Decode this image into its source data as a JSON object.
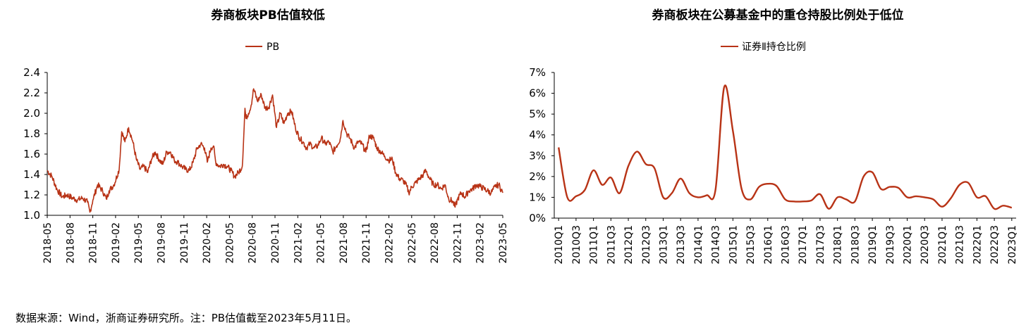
{
  "chart_data": [
    {
      "type": "line",
      "title": "券商板块PB估值较低",
      "legend_position": "top-center",
      "series": [
        {
          "name": "PB",
          "color": "#b83316",
          "points": [
            [
              "2018-05-01",
              1.44
            ],
            [
              "2018-05-20",
              1.38
            ],
            [
              "2018-06-10",
              1.25
            ],
            [
              "2018-07-01",
              1.18
            ],
            [
              "2018-07-20",
              1.2
            ],
            [
              "2018-08-10",
              1.17
            ],
            [
              "2018-09-01",
              1.15
            ],
            [
              "2018-09-20",
              1.17
            ],
            [
              "2018-10-10",
              1.13
            ],
            [
              "2018-10-20",
              1.03
            ],
            [
              "2018-11-01",
              1.15
            ],
            [
              "2018-11-20",
              1.3
            ],
            [
              "2018-12-10",
              1.24
            ],
            [
              "2018-12-25",
              1.16
            ],
            [
              "2019-01-05",
              1.24
            ],
            [
              "2019-01-25",
              1.3
            ],
            [
              "2019-02-15",
              1.45
            ],
            [
              "2019-02-25",
              1.82
            ],
            [
              "2019-03-10",
              1.72
            ],
            [
              "2019-03-25",
              1.86
            ],
            [
              "2019-04-10",
              1.73
            ],
            [
              "2019-04-25",
              1.55
            ],
            [
              "2019-05-10",
              1.45
            ],
            [
              "2019-05-25",
              1.48
            ],
            [
              "2019-06-10",
              1.42
            ],
            [
              "2019-06-25",
              1.55
            ],
            [
              "2019-07-10",
              1.62
            ],
            [
              "2019-07-25",
              1.55
            ],
            [
              "2019-08-10",
              1.5
            ],
            [
              "2019-08-25",
              1.62
            ],
            [
              "2019-09-10",
              1.62
            ],
            [
              "2019-09-25",
              1.54
            ],
            [
              "2019-10-10",
              1.52
            ],
            [
              "2019-10-25",
              1.48
            ],
            [
              "2019-11-10",
              1.45
            ],
            [
              "2019-11-25",
              1.44
            ],
            [
              "2019-12-10",
              1.52
            ],
            [
              "2019-12-25",
              1.65
            ],
            [
              "2020-01-10",
              1.7
            ],
            [
              "2020-01-25",
              1.66
            ],
            [
              "2020-02-05",
              1.52
            ],
            [
              "2020-02-20",
              1.66
            ],
            [
              "2020-03-01",
              1.68
            ],
            [
              "2020-03-10",
              1.52
            ],
            [
              "2020-03-25",
              1.48
            ],
            [
              "2020-04-10",
              1.5
            ],
            [
              "2020-04-25",
              1.48
            ],
            [
              "2020-05-10",
              1.44
            ],
            [
              "2020-05-25",
              1.38
            ],
            [
              "2020-06-10",
              1.42
            ],
            [
              "2020-06-25",
              1.48
            ],
            [
              "2020-07-01",
              1.78
            ],
            [
              "2020-07-06",
              2.05
            ],
            [
              "2020-07-10",
              1.95
            ],
            [
              "2020-07-20",
              2.0
            ],
            [
              "2020-07-31",
              2.08
            ],
            [
              "2020-08-10",
              2.24
            ],
            [
              "2020-08-25",
              2.12
            ],
            [
              "2020-09-10",
              2.18
            ],
            [
              "2020-09-25",
              2.05
            ],
            [
              "2020-10-10",
              2.06
            ],
            [
              "2020-10-25",
              2.18
            ],
            [
              "2020-11-10",
              1.86
            ],
            [
              "2020-11-25",
              2.0
            ],
            [
              "2020-12-10",
              1.9
            ],
            [
              "2020-12-25",
              2.0
            ],
            [
              "2021-01-10",
              2.02
            ],
            [
              "2021-01-25",
              1.86
            ],
            [
              "2021-02-10",
              1.76
            ],
            [
              "2021-02-25",
              1.72
            ],
            [
              "2021-03-10",
              1.66
            ],
            [
              "2021-03-25",
              1.7
            ],
            [
              "2021-04-10",
              1.66
            ],
            [
              "2021-04-25",
              1.68
            ],
            [
              "2021-05-10",
              1.76
            ],
            [
              "2021-05-25",
              1.7
            ],
            [
              "2021-06-10",
              1.72
            ],
            [
              "2021-06-25",
              1.62
            ],
            [
              "2021-07-10",
              1.68
            ],
            [
              "2021-07-25",
              1.75
            ],
            [
              "2021-08-05",
              1.93
            ],
            [
              "2021-08-20",
              1.8
            ],
            [
              "2021-09-05",
              1.74
            ],
            [
              "2021-09-20",
              1.66
            ],
            [
              "2021-10-05",
              1.72
            ],
            [
              "2021-10-20",
              1.7
            ],
            [
              "2021-11-05",
              1.62
            ],
            [
              "2021-11-20",
              1.78
            ],
            [
              "2021-12-05",
              1.76
            ],
            [
              "2021-12-20",
              1.66
            ],
            [
              "2022-01-05",
              1.62
            ],
            [
              "2022-01-20",
              1.58
            ],
            [
              "2022-02-05",
              1.54
            ],
            [
              "2022-02-20",
              1.55
            ],
            [
              "2022-03-05",
              1.42
            ],
            [
              "2022-03-20",
              1.36
            ],
            [
              "2022-04-05",
              1.34
            ],
            [
              "2022-04-20",
              1.28
            ],
            [
              "2022-04-27",
              1.22
            ],
            [
              "2022-05-10",
              1.28
            ],
            [
              "2022-05-25",
              1.32
            ],
            [
              "2022-06-10",
              1.36
            ],
            [
              "2022-06-25",
              1.4
            ],
            [
              "2022-07-05",
              1.44
            ],
            [
              "2022-07-20",
              1.36
            ],
            [
              "2022-08-05",
              1.3
            ],
            [
              "2022-08-20",
              1.3
            ],
            [
              "2022-09-05",
              1.26
            ],
            [
              "2022-09-20",
              1.3
            ],
            [
              "2022-10-05",
              1.16
            ],
            [
              "2022-10-20",
              1.14
            ],
            [
              "2022-10-31",
              1.08
            ],
            [
              "2022-11-10",
              1.16
            ],
            [
              "2022-11-25",
              1.22
            ],
            [
              "2022-12-10",
              1.18
            ],
            [
              "2022-12-25",
              1.24
            ],
            [
              "2023-01-10",
              1.26
            ],
            [
              "2023-01-25",
              1.3
            ],
            [
              "2023-02-10",
              1.28
            ],
            [
              "2023-02-25",
              1.26
            ],
            [
              "2023-03-10",
              1.24
            ],
            [
              "2023-03-25",
              1.22
            ],
            [
              "2023-04-10",
              1.28
            ],
            [
              "2023-04-25",
              1.3
            ],
            [
              "2023-05-11",
              1.22
            ]
          ]
        }
      ],
      "y_range": [
        1.0,
        2.4
      ],
      "y_ticks": [
        "1.0",
        "1.2",
        "1.4",
        "1.6",
        "1.8",
        "2.0",
        "2.2",
        "2.4"
      ],
      "x_range": [
        "2018-05-01",
        "2023-05-11"
      ],
      "x_tick_labels": [
        "2018-05",
        "2018-08",
        "2018-11",
        "2019-02",
        "2019-05",
        "2019-08",
        "2019-11",
        "2020-02",
        "2020-05",
        "2020-08",
        "2020-11",
        "2021-02",
        "2021-05",
        "2021-08",
        "2021-11",
        "2022-02",
        "2022-05",
        "2022-08",
        "2022-11",
        "2023-02",
        "2023-05"
      ],
      "grid": false
    },
    {
      "type": "line",
      "title": "券商板块在公募基金中的重仓持股比例处于低位",
      "legend_position": "top-center",
      "categories": [
        "2010Q1",
        "2010Q2",
        "2010Q3",
        "2010Q4",
        "2011Q1",
        "2011Q2",
        "2011Q3",
        "2011Q4",
        "2012Q1",
        "2012Q2",
        "2012Q3",
        "2012Q4",
        "2013Q1",
        "2013Q2",
        "2013Q3",
        "2013Q4",
        "2014Q1",
        "2014Q2",
        "2014Q3",
        "2014Q4",
        "2015Q1",
        "2015Q2",
        "2015Q3",
        "2015Q4",
        "2016Q1",
        "2016Q2",
        "2016Q3",
        "2016Q4",
        "2017Q1",
        "2017Q2",
        "2017Q3",
        "2017Q4",
        "2018Q1",
        "2018Q2",
        "2018Q3",
        "2018Q4",
        "2019Q1",
        "2019Q2",
        "2019Q3",
        "2019Q4",
        "2020Q1",
        "2020Q2",
        "2020Q3",
        "2020Q4",
        "2021Q1",
        "2021Q2",
        "2021Q3",
        "2021Q4",
        "2022Q1",
        "2022Q2",
        "2022Q3",
        "2022Q4",
        "2023Q1"
      ],
      "x_tick_labels": [
        "2010Q1",
        "2010Q3",
        "2011Q1",
        "2011Q3",
        "2012Q1",
        "2012Q3",
        "2013Q1",
        "2013Q3",
        "2014Q1",
        "2014Q3",
        "2015Q1",
        "2015Q3",
        "2016Q1",
        "2016Q3",
        "2017Q1",
        "2017Q3",
        "2018Q1",
        "2018Q3",
        "2019Q1",
        "2019Q3",
        "2020Q1",
        "2020Q3",
        "2021Q1",
        "2021Q3",
        "2022Q1",
        "2022Q3",
        "2023Q1"
      ],
      "series": [
        {
          "name": "证券Ⅱ持仓比例",
          "color": "#b83316",
          "values": [
            3.4,
            1.0,
            1.05,
            1.35,
            2.3,
            1.6,
            1.95,
            1.2,
            2.5,
            3.2,
            2.6,
            2.4,
            1.0,
            1.2,
            1.9,
            1.2,
            1.0,
            1.1,
            1.35,
            6.3,
            4.2,
            1.4,
            0.9,
            1.5,
            1.65,
            1.55,
            0.9,
            0.8,
            0.8,
            0.85,
            1.15,
            0.45,
            1.0,
            0.9,
            0.8,
            2.0,
            2.2,
            1.4,
            1.5,
            1.45,
            1.0,
            1.05,
            1.0,
            0.9,
            0.55,
            0.95,
            1.6,
            1.7,
            1.0,
            1.05,
            0.45,
            0.6,
            0.5
          ]
        }
      ],
      "y_range": [
        0,
        7
      ],
      "y_ticks": [
        "0%",
        "1%",
        "2%",
        "3%",
        "4%",
        "5%",
        "6%",
        "7%"
      ],
      "grid": false
    }
  ],
  "source_note": "数据来源：Wind，浙商证券研究所。注：PB估值截至2023年5月11日。"
}
